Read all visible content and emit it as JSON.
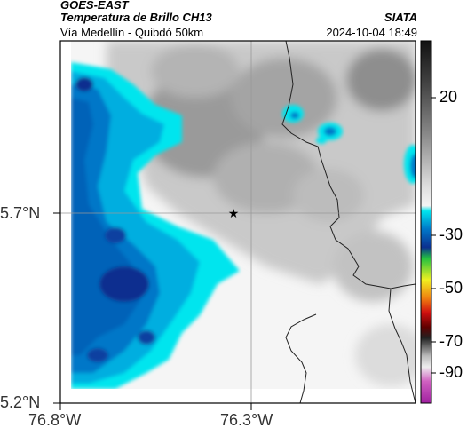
{
  "header": {
    "satellite": "GOES-EAST",
    "product": "Temperatura de Brillo CH13",
    "region": "Vía Medellín - Quibdó 50km",
    "org": "SIATA",
    "datetime": "2024-10-04 18:49"
  },
  "map": {
    "lat_labels": [
      "5.7°N",
      "5.2°N"
    ],
    "lon_labels": [
      "76.8°W",
      "76.3°W"
    ],
    "grid": true,
    "marker": "star"
  },
  "colorbar": {
    "tick_labels": [
      "20",
      "-30",
      "-50",
      "-70",
      "-90"
    ],
    "colors": {
      "black": "#111111",
      "gray_dark": "#555555",
      "gray_light": "#eeeeee",
      "cyan": "#00e5ee",
      "blue": "#0077c8",
      "navy": "#0b2f8f",
      "green": "#22c040",
      "yellow": "#f0f020",
      "orange": "#f08010",
      "red": "#d01010",
      "darkred": "#600000",
      "magenta": "#d060c0"
    }
  }
}
